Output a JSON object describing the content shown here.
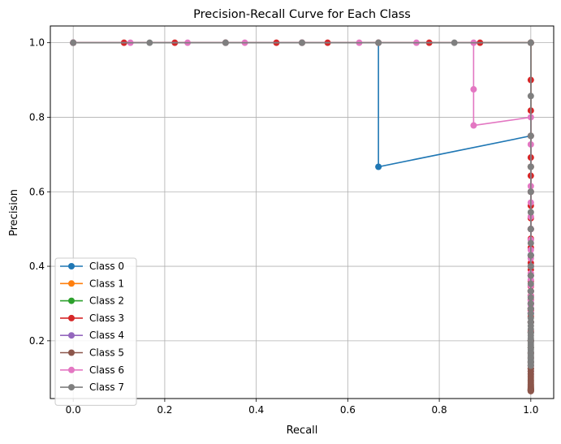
{
  "chart_data": {
    "type": "line",
    "title": "Precision-Recall Curve for Each Class",
    "xlabel": "Recall",
    "ylabel": "Precision",
    "xlim": [
      -0.05,
      1.05
    ],
    "ylim": [
      0.045,
      1.045
    ],
    "xticks": [
      "0.0",
      "0.2",
      "0.4",
      "0.6",
      "0.8",
      "1.0"
    ],
    "yticks": [
      "0.2",
      "0.4",
      "0.6",
      "0.8",
      "1.0"
    ],
    "grid": true,
    "legend_position": "lower-left",
    "series": [
      {
        "name": "Class 0",
        "color": "#1f77b4",
        "x": [
          0,
          0.333,
          0.667,
          0.667,
          1.0,
          1.0,
          1.0,
          1.0,
          1.0,
          1.0,
          1.0,
          1.0,
          1.0,
          1.0
        ],
        "y": [
          1.0,
          1.0,
          1.0,
          0.667,
          0.75,
          0.6,
          0.5,
          0.43,
          0.375,
          0.333,
          0.3,
          0.273,
          0.25,
          0.2
        ]
      },
      {
        "name": "Class 1",
        "color": "#ff7f0e",
        "x": [
          0,
          0.5,
          1.0,
          1.0,
          1.0,
          1.0,
          1.0,
          1.0,
          1.0,
          1.0,
          1.0,
          1.0,
          1.0,
          1.0,
          1.0,
          1.0,
          1.0
        ],
        "y": [
          1.0,
          1.0,
          1.0,
          0.667,
          0.5,
          0.4,
          0.333,
          0.286,
          0.25,
          0.222,
          0.2,
          0.182,
          0.167,
          0.154,
          0.143,
          0.133,
          0.125
        ]
      },
      {
        "name": "Class 2",
        "color": "#2ca02c",
        "x": [
          0,
          0.5,
          1.0,
          1.0,
          1.0,
          1.0,
          1.0,
          1.0,
          1.0,
          1.0,
          1.0,
          1.0
        ],
        "y": [
          1.0,
          1.0,
          1.0,
          0.667,
          0.5,
          0.4,
          0.333,
          0.286,
          0.25,
          0.222,
          0.2,
          0.182
        ]
      },
      {
        "name": "Class 3",
        "color": "#d62728",
        "x": [
          0,
          0.111,
          0.222,
          0.333,
          0.444,
          0.556,
          0.667,
          0.778,
          0.889,
          1.0,
          1.0,
          1.0,
          1.0,
          1.0,
          1.0,
          1.0,
          1.0,
          1.0,
          1.0,
          1.0,
          1.0,
          1.0,
          1.0,
          1.0,
          1.0,
          1.0,
          1.0,
          1.0,
          1.0,
          1.0,
          1.0,
          1.0,
          1.0,
          1.0,
          1.0,
          1.0
        ],
        "y": [
          1.0,
          1.0,
          1.0,
          1.0,
          1.0,
          1.0,
          1.0,
          1.0,
          1.0,
          1.0,
          0.9,
          0.818,
          0.75,
          0.692,
          0.643,
          0.6,
          0.5625,
          0.529,
          0.5,
          0.474,
          0.45,
          0.429,
          0.409,
          0.391,
          0.375,
          0.36,
          0.346,
          0.333,
          0.321,
          0.31,
          0.3,
          0.281,
          0.265,
          0.25,
          0.225,
          0.2
        ]
      },
      {
        "name": "Class 4",
        "color": "#9467bd",
        "x": [
          0,
          0.5,
          1.0,
          1.0,
          1.0,
          1.0,
          1.0,
          1.0,
          1.0,
          1.0,
          1.0,
          1.0,
          1.0,
          1.0,
          1.0,
          1.0,
          1.0,
          1.0
        ],
        "y": [
          1.0,
          1.0,
          1.0,
          0.5,
          0.4,
          0.333,
          0.286,
          0.25,
          0.222,
          0.2,
          0.182,
          0.167,
          0.154,
          0.143,
          0.133,
          0.125,
          0.118,
          0.111
        ]
      },
      {
        "name": "Class 5",
        "color": "#8c564b",
        "x": [
          0,
          0.5,
          1.0,
          1.0,
          1.0,
          1.0,
          1.0,
          1.0,
          1.0,
          1.0,
          1.0,
          1.0,
          1.0,
          1.0,
          1.0,
          1.0,
          1.0,
          1.0,
          1.0,
          1.0,
          1.0,
          1.0,
          1.0,
          1.0,
          1.0,
          1.0,
          1.0,
          1.0,
          1.0,
          1.0
        ],
        "y": [
          1.0,
          1.0,
          1.0,
          0.5,
          0.333,
          0.25,
          0.2,
          0.167,
          0.143,
          0.125,
          0.118,
          0.111,
          0.105,
          0.1,
          0.095,
          0.091,
          0.087,
          0.083,
          0.08,
          0.077,
          0.075,
          0.073,
          0.071,
          0.07,
          0.069,
          0.068,
          0.067,
          0.066,
          0.0655,
          0.065
        ]
      },
      {
        "name": "Class 6",
        "color": "#e377c2",
        "x": [
          0,
          0.125,
          0.25,
          0.375,
          0.5,
          0.625,
          0.75,
          0.875,
          0.875,
          0.875,
          1.0,
          1.0,
          1.0,
          1.0,
          1.0,
          1.0,
          1.0,
          1.0,
          1.0,
          1.0,
          1.0,
          1.0,
          1.0,
          1.0,
          1.0,
          1.0,
          1.0,
          1.0,
          1.0,
          1.0
        ],
        "y": [
          1.0,
          1.0,
          1.0,
          1.0,
          1.0,
          1.0,
          1.0,
          1.0,
          0.875,
          0.778,
          0.8,
          0.727,
          0.667,
          0.615,
          0.571,
          0.533,
          0.5,
          0.471,
          0.444,
          0.421,
          0.4,
          0.381,
          0.364,
          0.348,
          0.333,
          0.32,
          0.308,
          0.296,
          0.286,
          0.276
        ]
      },
      {
        "name": "Class 7",
        "color": "#7f7f7f",
        "x": [
          0,
          0.167,
          0.333,
          0.5,
          0.667,
          0.833,
          1.0,
          1.0,
          1.0,
          1.0,
          1.0,
          1.0,
          1.0,
          1.0,
          1.0,
          1.0,
          1.0,
          1.0,
          1.0,
          1.0,
          1.0,
          1.0,
          1.0,
          1.0,
          1.0,
          1.0,
          1.0,
          1.0,
          1.0,
          1.0,
          1.0,
          1.0,
          1.0,
          1.0,
          1.0,
          1.0,
          1.0,
          1.0,
          1.0,
          1.0,
          1.0,
          1.0,
          1.0,
          1.0,
          1.0,
          1.0
        ],
        "y": [
          1.0,
          1.0,
          1.0,
          1.0,
          1.0,
          1.0,
          1.0,
          0.857,
          0.75,
          0.667,
          0.6,
          0.545,
          0.5,
          0.462,
          0.429,
          0.4,
          0.375,
          0.353,
          0.333,
          0.316,
          0.3,
          0.286,
          0.273,
          0.261,
          0.25,
          0.24,
          0.231,
          0.222,
          0.214,
          0.207,
          0.2,
          0.194,
          0.188,
          0.182,
          0.176,
          0.171,
          0.167,
          0.162,
          0.158,
          0.154,
          0.15,
          0.146,
          0.143,
          0.14,
          0.136,
          0.133
        ]
      }
    ]
  }
}
